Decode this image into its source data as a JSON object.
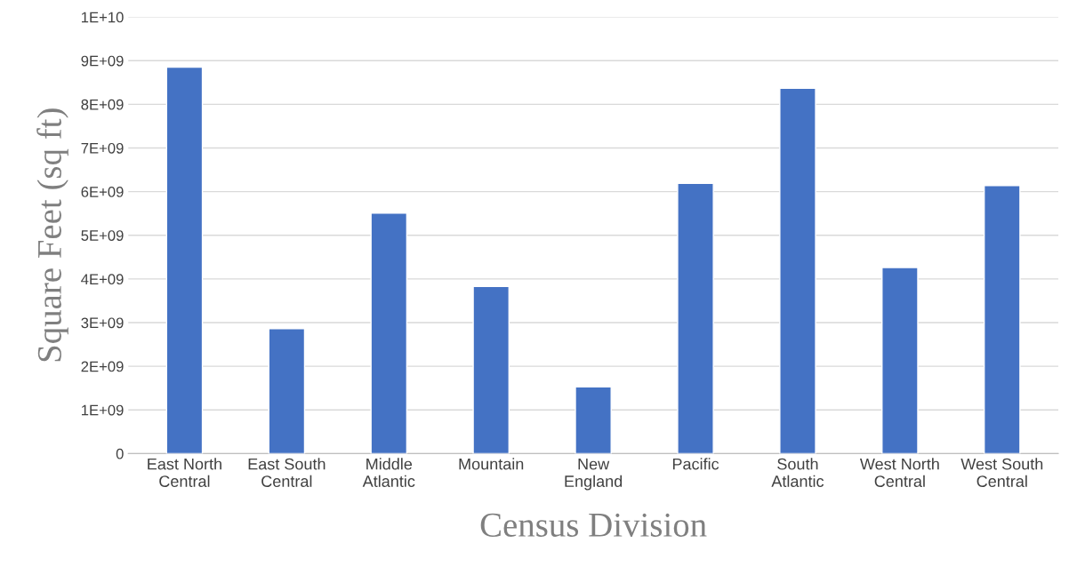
{
  "chart_data": {
    "type": "bar",
    "xlabel": "Census Division",
    "ylabel": "Square Feet (sq ft)",
    "categories": [
      "East North Central",
      "East South Central",
      "Middle Atlantic",
      "Mountain",
      "New England",
      "Pacific",
      "South Atlantic",
      "West North Central",
      "West South Central"
    ],
    "values": [
      8850000000.0,
      2860000000.0,
      5510000000.0,
      3830000000.0,
      1530000000.0,
      6190000000.0,
      8370000000.0,
      4260000000.0,
      6140000000.0
    ],
    "color": "#4472c4",
    "ylim": [
      0,
      10000000000.0
    ],
    "yticks": [
      0,
      {
        "value": 1000000000.0,
        "label": "1E+09"
      },
      {
        "value": 2000000000.0,
        "label": "2E+09"
      },
      {
        "value": 3000000000.0,
        "label": "3E+09"
      },
      {
        "value": 4000000000.0,
        "label": "4E+09"
      },
      {
        "value": 5000000000.0,
        "label": "5E+09"
      },
      {
        "value": 6000000000.0,
        "label": "6E+09"
      },
      {
        "value": 7000000000.0,
        "label": "7E+09"
      },
      {
        "value": 8000000000.0,
        "label": "8E+09"
      },
      {
        "value": 9000000000.0,
        "label": "9E+09"
      },
      {
        "value": 10000000000.0,
        "label": "1E+10"
      }
    ],
    "grid": "y"
  }
}
